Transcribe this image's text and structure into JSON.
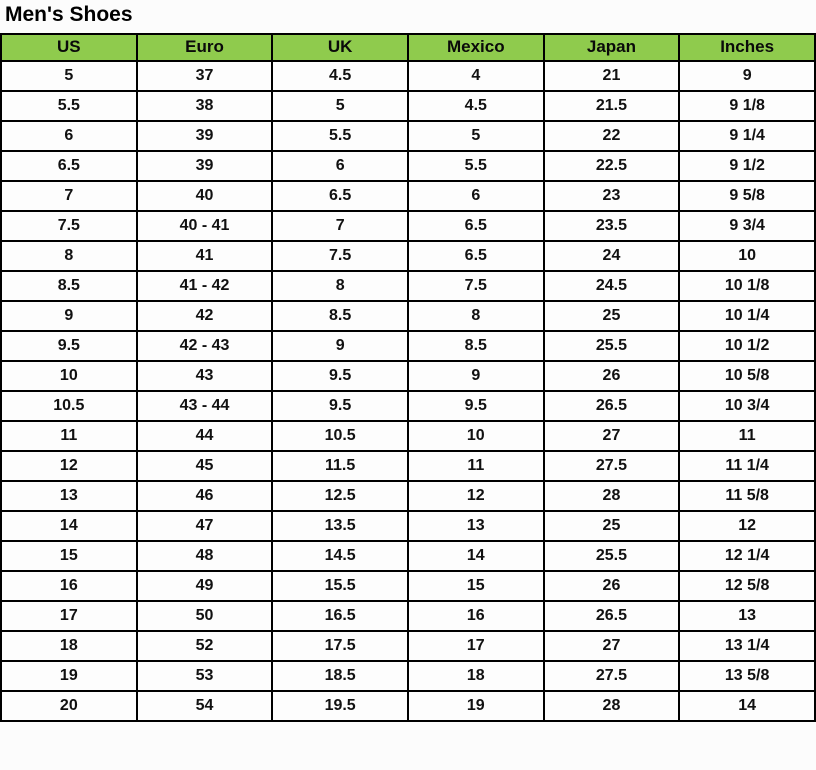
{
  "page": {
    "title": "Men's Shoes"
  },
  "colors": {
    "header_bg": "#8FCB4D",
    "border": "#000000",
    "text": "#000000",
    "cell_bg": "#fdfdfd"
  },
  "chart_data": {
    "type": "table",
    "title": "Men's Shoes",
    "columns": [
      "US",
      "Euro",
      "UK",
      "Mexico",
      "Japan",
      "Inches"
    ],
    "rows": [
      [
        "5",
        "37",
        "4.5",
        "4",
        "21",
        "9"
      ],
      [
        "5.5",
        "38",
        "5",
        "4.5",
        "21.5",
        "9 1/8"
      ],
      [
        "6",
        "39",
        "5.5",
        "5",
        "22",
        "9 1/4"
      ],
      [
        "6.5",
        "39",
        "6",
        "5.5",
        "22.5",
        "9 1/2"
      ],
      [
        "7",
        "40",
        "6.5",
        "6",
        "23",
        "9 5/8"
      ],
      [
        "7.5",
        "40 - 41",
        "7",
        "6.5",
        "23.5",
        "9 3/4"
      ],
      [
        "8",
        "41",
        "7.5",
        "6.5",
        "24",
        "10"
      ],
      [
        "8.5",
        "41 - 42",
        "8",
        "7.5",
        "24.5",
        "10 1/8"
      ],
      [
        "9",
        "42",
        "8.5",
        "8",
        "25",
        "10 1/4"
      ],
      [
        "9.5",
        "42 - 43",
        "9",
        "8.5",
        "25.5",
        "10 1/2"
      ],
      [
        "10",
        "43",
        "9.5",
        "9",
        "26",
        "10 5/8"
      ],
      [
        "10.5",
        "43 - 44",
        "9.5",
        "9.5",
        "26.5",
        "10 3/4"
      ],
      [
        "11",
        "44",
        "10.5",
        "10",
        "27",
        "11"
      ],
      [
        "12",
        "45",
        "11.5",
        "11",
        "27.5",
        "11 1/4"
      ],
      [
        "13",
        "46",
        "12.5",
        "12",
        "28",
        "11 5/8"
      ],
      [
        "14",
        "47",
        "13.5",
        "13",
        "25",
        "12"
      ],
      [
        "15",
        "48",
        "14.5",
        "14",
        "25.5",
        "12 1/4"
      ],
      [
        "16",
        "49",
        "15.5",
        "15",
        "26",
        "12 5/8"
      ],
      [
        "17",
        "50",
        "16.5",
        "16",
        "26.5",
        "13"
      ],
      [
        "18",
        "52",
        "17.5",
        "17",
        "27",
        "13 1/4"
      ],
      [
        "19",
        "53",
        "18.5",
        "18",
        "27.5",
        "13 5/8"
      ],
      [
        "20",
        "54",
        "19.5",
        "19",
        "28",
        "14"
      ]
    ]
  }
}
